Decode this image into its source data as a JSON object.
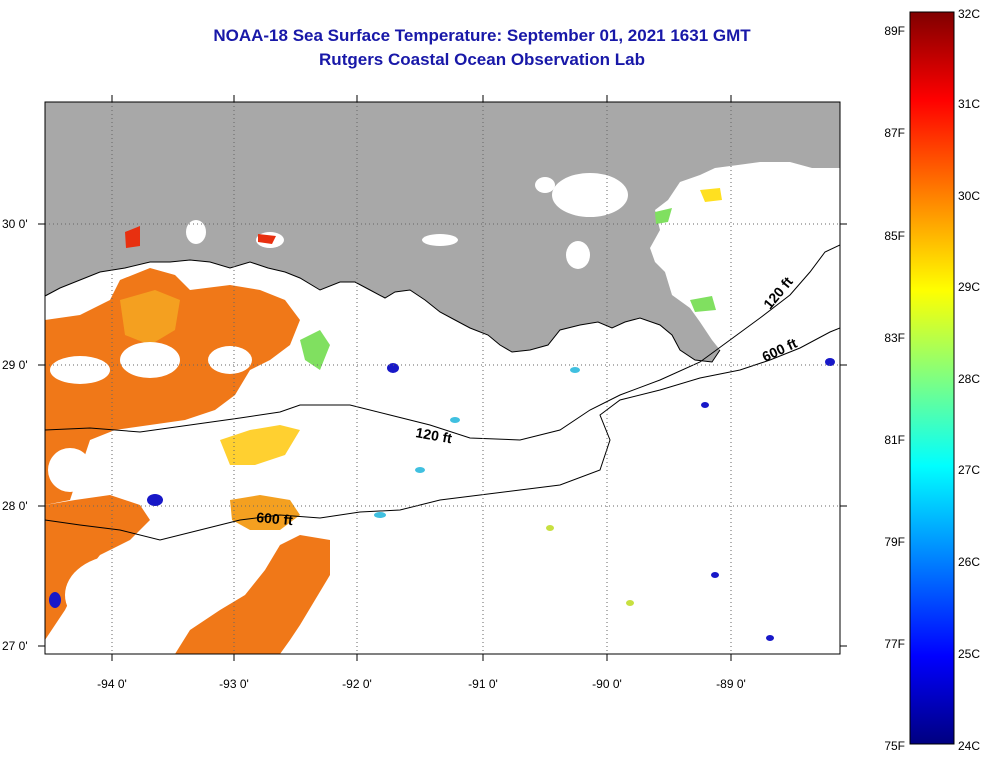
{
  "title": {
    "line1": "NOAA-18 Sea Surface Temperature:  September 01, 2021 1631 GMT",
    "line2": "Rutgers Coastal Ocean Observation Lab"
  },
  "map": {
    "lat_labels": [
      "30 0'",
      "29 0'",
      "28 0'",
      "27 0'"
    ],
    "lon_labels": [
      "-94 0'",
      "-93 0'",
      "-92 0'",
      "-91 0'",
      "-90 0'",
      "-89 0'"
    ],
    "contour_labels": [
      {
        "text": "120 ft"
      },
      {
        "text": "600 ft"
      },
      {
        "text": "120 ft"
      },
      {
        "text": "600 ft"
      }
    ],
    "colors": {
      "land": "#a8a8a8",
      "no_data": "#ffffff",
      "warm": "#f07818",
      "cool": "#1818c8"
    }
  },
  "colorbar": {
    "fahrenheit_labels": [
      "89F",
      "87F",
      "85F",
      "83F",
      "81F",
      "79F",
      "77F",
      "75F"
    ],
    "celsius_labels": [
      "32C",
      "31C",
      "30C",
      "29C",
      "28C",
      "27C",
      "26C",
      "25C",
      "24C"
    ],
    "range_c": [
      24,
      32
    ],
    "stops": [
      "#000080",
      "#0000ff",
      "#0080ff",
      "#00ffff",
      "#80ff80",
      "#ffff00",
      "#ff8000",
      "#ff0000",
      "#800000"
    ]
  }
}
